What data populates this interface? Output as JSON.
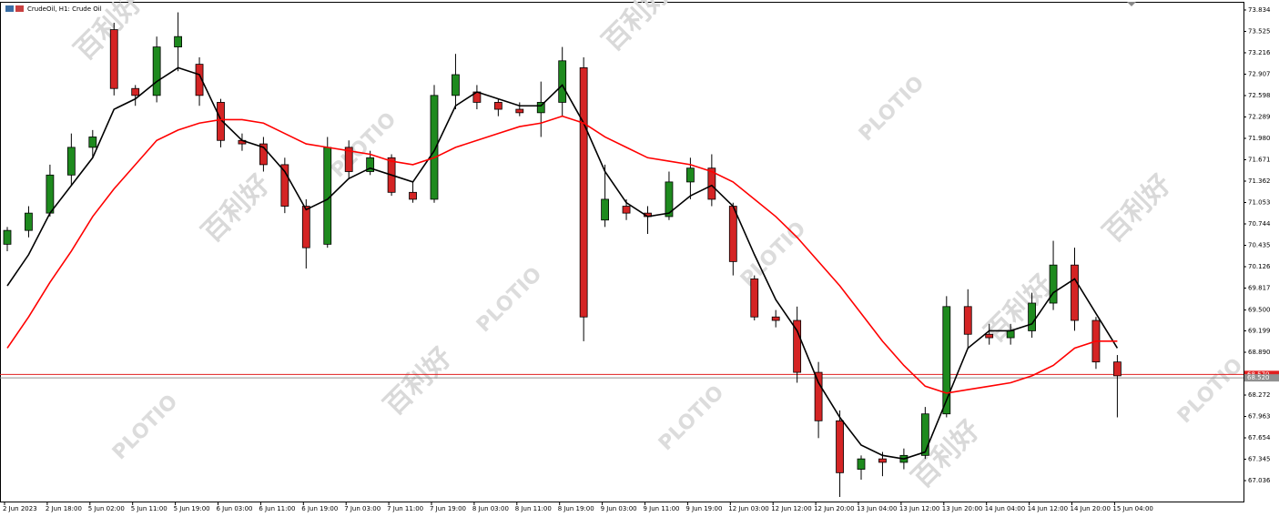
{
  "chart_data": {
    "type": "candlestick",
    "title": "CrudeOil, H1:  Crude Oil",
    "watermark": [
      "百利好",
      "PLOTIO"
    ],
    "up_color": "#1e8a1e",
    "down_color": "#d42424",
    "categories": [
      "2 Jun 2023",
      null,
      "2 Jun 18:00",
      null,
      "5 Jun 02:00",
      null,
      "5 Jun 11:00",
      null,
      "5 Jun 19:00",
      null,
      "6 Jun 03:00",
      null,
      "6 Jun 11:00",
      null,
      "6 Jun 19:00",
      null,
      "7 Jun 03:00",
      null,
      "7 Jun 11:00",
      null,
      "7 Jun 19:00",
      null,
      "8 Jun 03:00",
      null,
      "8 Jun 11:00",
      null,
      "8 Jun 19:00",
      null,
      "9 Jun 03:00",
      null,
      "9 Jun 11:00",
      null,
      "9 Jun 19:00",
      null,
      "12 Jun 03:00",
      null,
      "12 Jun 12:00",
      null,
      "12 Jun 20:00",
      null,
      "13 Jun 04:00",
      null,
      "13 Jun 12:00",
      null,
      "13 Jun 20:00",
      null,
      "14 Jun 04:00",
      null,
      "14 Jun 12:00",
      null,
      "14 Jun 20:00",
      null,
      "15 Jun 04:00"
    ],
    "open": [
      70.45,
      70.65,
      70.9,
      71.45,
      71.85,
      73.55,
      72.7,
      72.6,
      73.3,
      73.05,
      72.5,
      71.95,
      71.9,
      71.6,
      71.0,
      70.45,
      71.85,
      71.5,
      71.7,
      71.2,
      71.1,
      72.6,
      72.65,
      72.5,
      72.4,
      72.35,
      72.5,
      73.0,
      70.8,
      71.0,
      70.9,
      70.85,
      71.35,
      71.55,
      71.0,
      69.95,
      69.4,
      69.35,
      68.6,
      67.9,
      67.2,
      67.35,
      67.3,
      67.4,
      68.0,
      69.55,
      69.15,
      69.1,
      69.2,
      69.6,
      70.15,
      69.35,
      68.75
    ],
    "high": [
      70.7,
      71.0,
      71.6,
      72.05,
      72.1,
      73.65,
      72.75,
      73.45,
      73.8,
      73.15,
      72.55,
      72.05,
      72.0,
      71.7,
      71.1,
      72.0,
      71.95,
      71.8,
      71.75,
      71.35,
      72.75,
      73.2,
      72.75,
      72.55,
      72.5,
      72.8,
      73.3,
      73.15,
      71.6,
      71.1,
      71.0,
      71.5,
      71.7,
      71.75,
      71.05,
      70.0,
      69.5,
      69.55,
      68.75,
      68.05,
      67.4,
      67.45,
      67.5,
      68.1,
      69.7,
      69.8,
      69.3,
      69.3,
      69.75,
      70.5,
      70.4,
      69.4,
      68.85
    ],
    "low": [
      70.35,
      70.55,
      70.85,
      71.3,
      71.7,
      72.6,
      72.45,
      72.5,
      72.95,
      72.45,
      71.85,
      71.8,
      71.5,
      70.9,
      70.1,
      70.4,
      71.4,
      71.45,
      71.15,
      71.05,
      71.05,
      72.4,
      72.4,
      72.3,
      72.3,
      72.0,
      72.3,
      69.05,
      70.7,
      70.8,
      70.6,
      70.8,
      71.1,
      71.0,
      70.0,
      69.35,
      69.25,
      68.45,
      67.65,
      66.8,
      67.05,
      67.1,
      67.2,
      67.35,
      67.95,
      68.95,
      69.0,
      69.0,
      69.1,
      69.5,
      69.2,
      68.65,
      67.95
    ],
    "close": [
      70.65,
      70.9,
      71.45,
      71.85,
      72.0,
      72.7,
      72.6,
      73.3,
      73.45,
      72.6,
      71.95,
      71.9,
      71.6,
      71.0,
      70.4,
      71.85,
      71.5,
      71.7,
      71.2,
      71.1,
      72.6,
      72.9,
      72.5,
      72.4,
      72.35,
      72.5,
      73.1,
      69.4,
      71.1,
      70.9,
      70.85,
      71.35,
      71.55,
      71.1,
      70.2,
      69.4,
      69.35,
      68.6,
      67.9,
      67.15,
      67.35,
      67.3,
      67.4,
      68.0,
      69.55,
      69.15,
      69.1,
      69.2,
      69.6,
      70.15,
      69.35,
      68.75,
      68.55
    ],
    "overlays": [
      {
        "color": "#000000",
        "values": [
          69.85,
          70.3,
          70.9,
          71.3,
          71.7,
          72.4,
          72.55,
          72.8,
          73.0,
          72.9,
          72.25,
          71.95,
          71.85,
          71.5,
          70.95,
          71.1,
          71.4,
          71.55,
          71.45,
          71.35,
          71.8,
          72.45,
          72.65,
          72.55,
          72.45,
          72.45,
          72.75,
          72.2,
          71.5,
          71.05,
          70.85,
          70.9,
          71.15,
          71.3,
          71.0,
          70.3,
          69.65,
          69.2,
          68.45,
          67.95,
          67.55,
          67.4,
          67.35,
          67.45,
          68.2,
          68.95,
          69.2,
          69.2,
          69.3,
          69.75,
          69.95,
          69.45,
          68.95
        ]
      },
      {
        "color": "#ff0000",
        "values": [
          68.95,
          69.4,
          69.9,
          70.35,
          70.85,
          71.25,
          71.6,
          71.95,
          72.1,
          72.2,
          72.25,
          72.25,
          72.2,
          72.05,
          71.9,
          71.85,
          71.8,
          71.75,
          71.65,
          71.6,
          71.7,
          71.85,
          71.95,
          72.05,
          72.15,
          72.2,
          72.3,
          72.2,
          72.0,
          71.85,
          71.7,
          71.65,
          71.6,
          71.5,
          71.35,
          71.1,
          70.85,
          70.55,
          70.2,
          69.85,
          69.45,
          69.05,
          68.7,
          68.4,
          68.3,
          68.35,
          68.4,
          68.45,
          68.55,
          68.7,
          68.95,
          69.05,
          69.05
        ]
      }
    ],
    "hlines": [
      {
        "value": 68.57,
        "label": "68.570",
        "color": "#e02020"
      },
      {
        "value": 68.52,
        "label": "68.520",
        "color": "#909090"
      }
    ],
    "ylim": [
      66.734,
      73.952
    ],
    "yticks": [
      73.834,
      73.525,
      73.216,
      72.907,
      72.598,
      72.289,
      {
        "value": 71.98,
        "label": "71.980"
      },
      71.671,
      71.362,
      71.053,
      70.744,
      70.435,
      70.126,
      69.817,
      {
        "value": 69.5,
        "label": "69.500"
      },
      69.199,
      {
        "value": 68.89,
        "label": "68.890"
      },
      68.272,
      67.963,
      67.654,
      67.345,
      67.036
    ]
  }
}
